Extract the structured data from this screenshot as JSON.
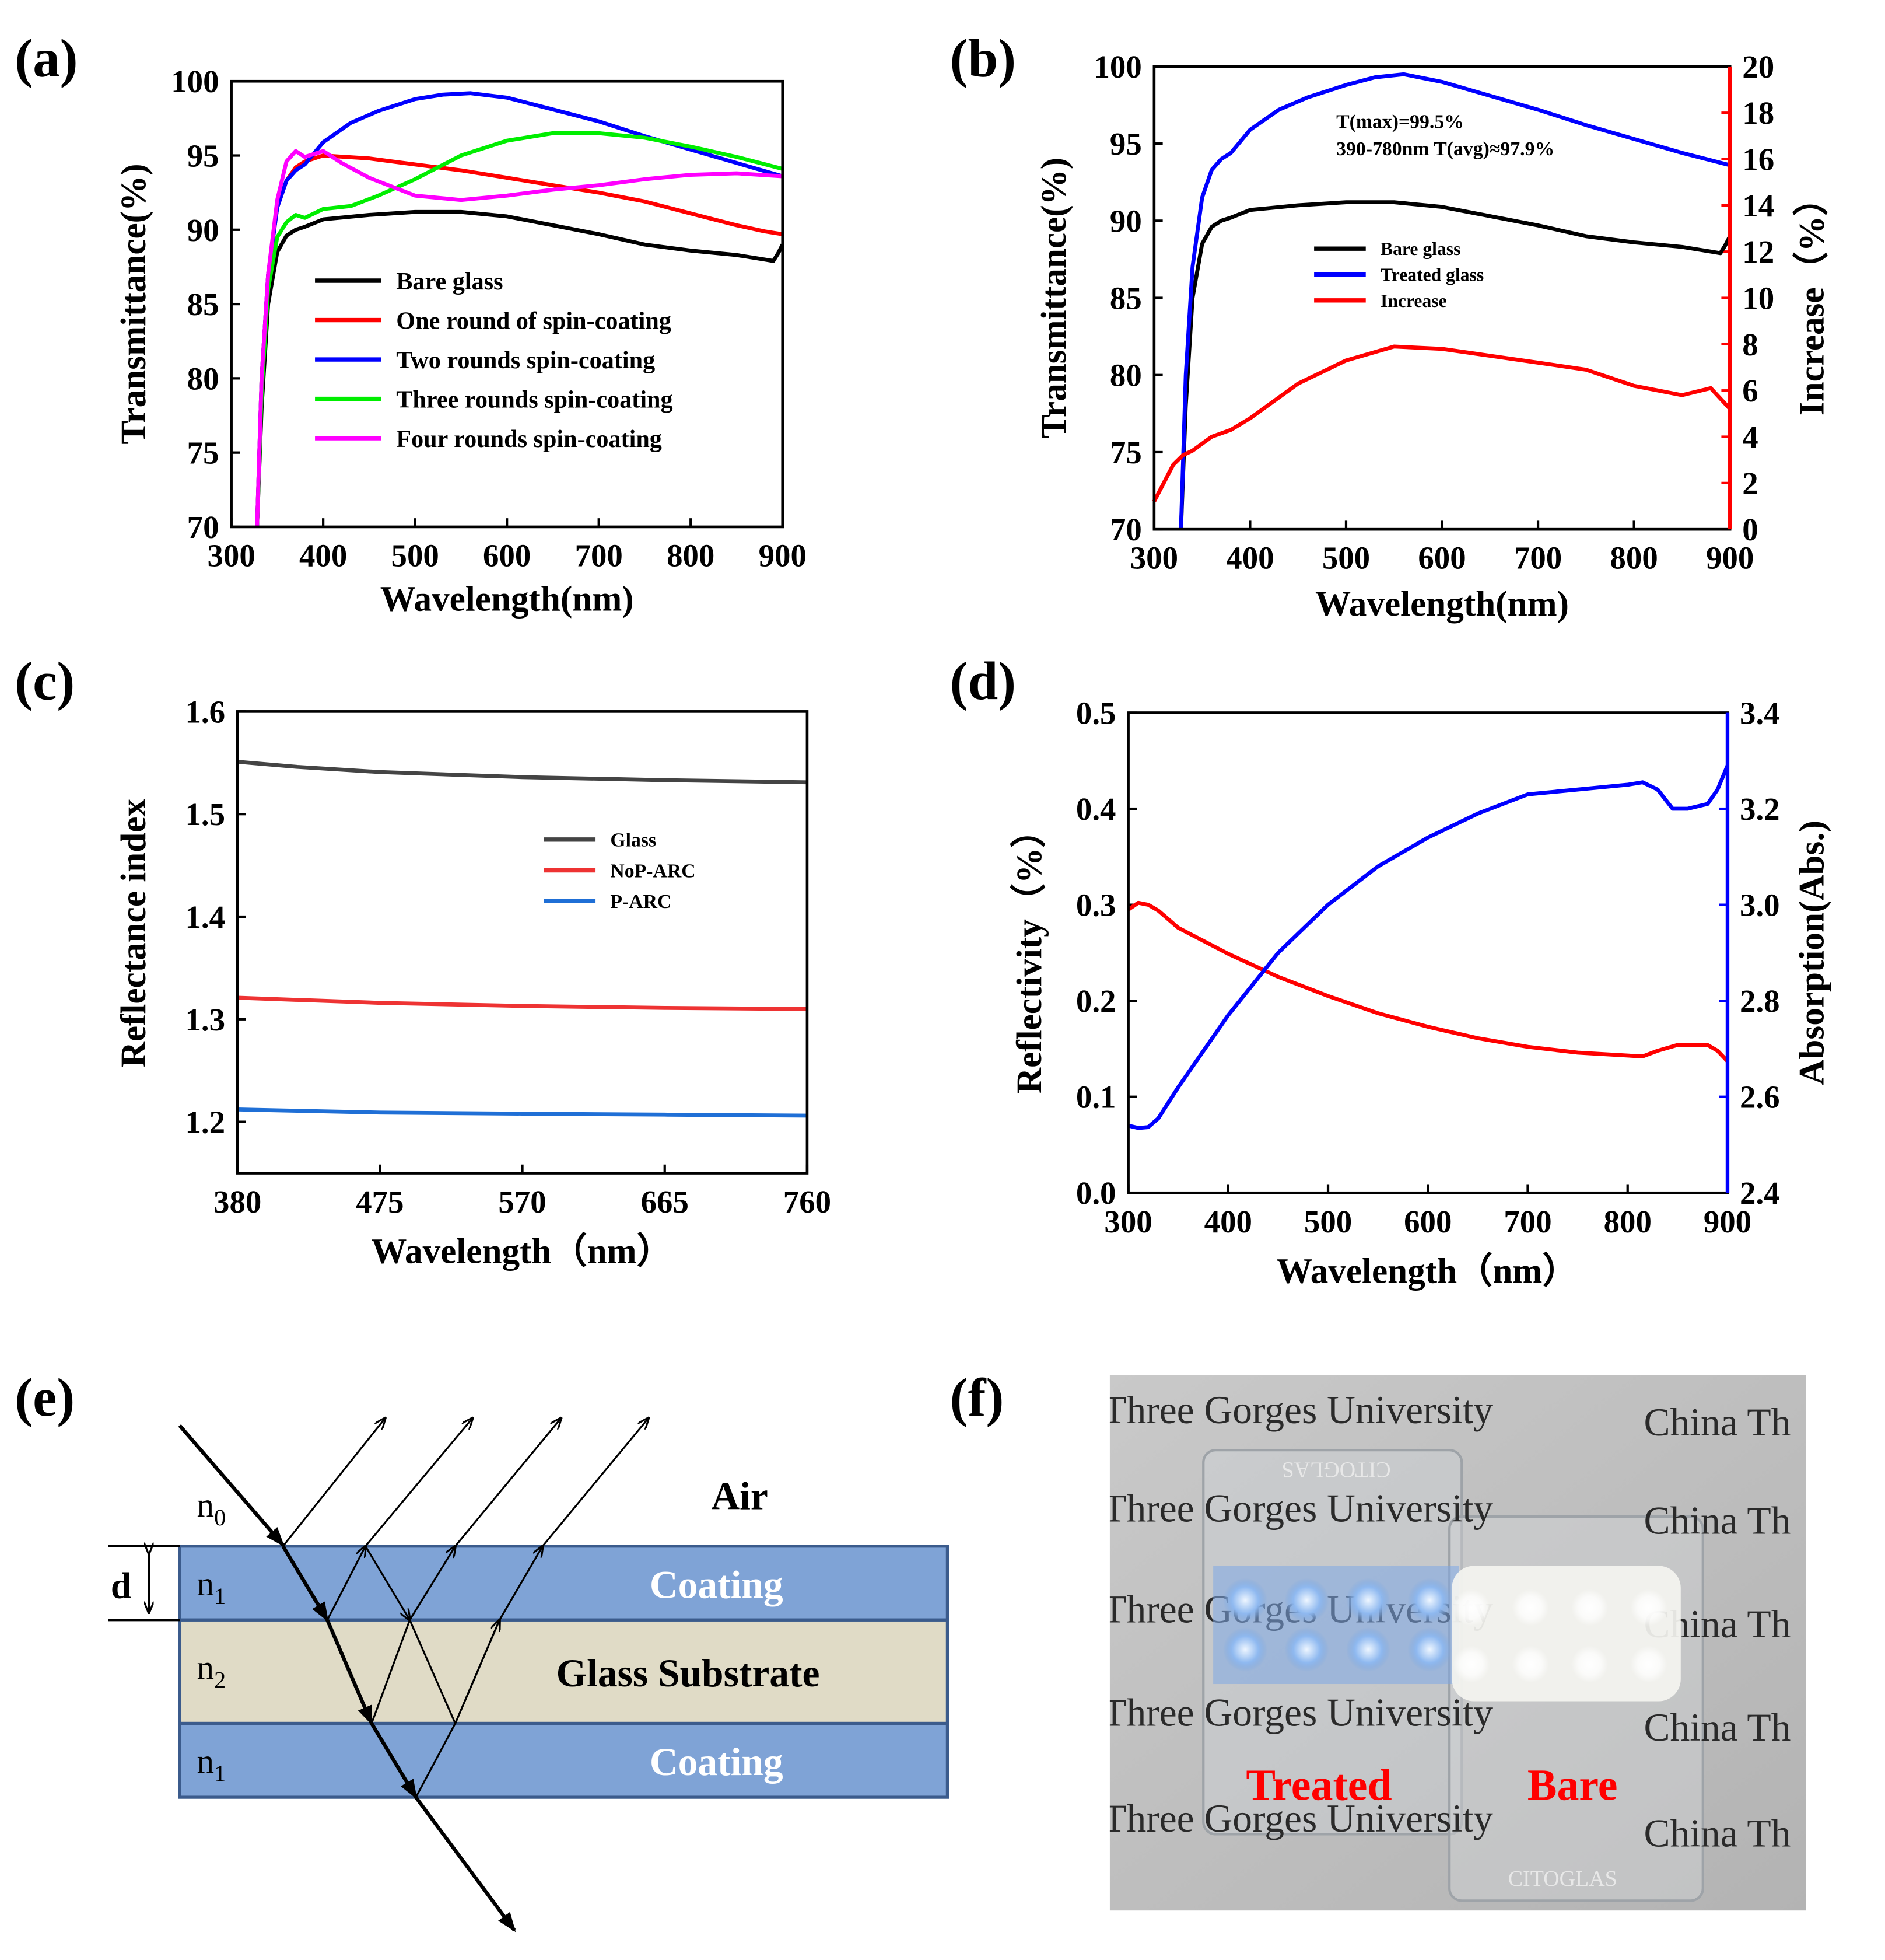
{
  "panel_labels": [
    "(a)",
    "(b)",
    "(c)",
    "(d)",
    "(e)",
    "(f)"
  ],
  "chart_data": [
    {
      "id": "a",
      "type": "line",
      "xlabel": "Wavelength(nm)",
      "ylabel": "Transmittance(%)",
      "xlim": [
        300,
        900
      ],
      "ylim": [
        70,
        100
      ],
      "xticks": [
        300,
        400,
        500,
        600,
        700,
        800,
        900
      ],
      "yticks": [
        70,
        75,
        80,
        85,
        90,
        95,
        100
      ],
      "legend_position": "center",
      "series": [
        {
          "name": "Bare glass",
          "color": "#000000",
          "x": [
            328,
            333,
            340,
            350,
            360,
            370,
            380,
            400,
            450,
            500,
            550,
            600,
            650,
            700,
            750,
            800,
            850,
            880,
            890,
            895,
            900
          ],
          "y": [
            70,
            78,
            85,
            88.5,
            89.6,
            90.0,
            90.2,
            90.7,
            91.0,
            91.2,
            91.2,
            90.9,
            90.3,
            89.7,
            89.0,
            88.6,
            88.3,
            88.0,
            87.9,
            88.4,
            89.0
          ]
        },
        {
          "name": "One round of spin-coating",
          "color": "#ff0000",
          "x": [
            328,
            333,
            340,
            350,
            360,
            370,
            380,
            400,
            450,
            500,
            550,
            600,
            650,
            700,
            750,
            800,
            850,
            880,
            900
          ],
          "y": [
            70,
            80,
            87,
            91.5,
            93.3,
            94.2,
            94.6,
            95.0,
            94.8,
            94.4,
            94.0,
            93.5,
            93.0,
            92.5,
            91.9,
            91.1,
            90.3,
            89.9,
            89.7
          ]
        },
        {
          "name": "Two rounds spin-coating",
          "color": "#0000ff",
          "x": [
            328,
            333,
            340,
            350,
            360,
            370,
            380,
            400,
            430,
            460,
            500,
            530,
            560,
            600,
            650,
            700,
            750,
            800,
            850,
            900
          ],
          "y": [
            70,
            80,
            87,
            91.5,
            93.3,
            94.0,
            94.4,
            95.9,
            97.2,
            98.0,
            98.8,
            99.1,
            99.2,
            98.9,
            98.1,
            97.3,
            96.3,
            95.4,
            94.5,
            93.6
          ]
        },
        {
          "name": "Three rounds spin-coating",
          "color": "#00ee00",
          "x": [
            328,
            333,
            340,
            350,
            360,
            370,
            380,
            400,
            430,
            460,
            500,
            550,
            600,
            650,
            700,
            750,
            800,
            850,
            900
          ],
          "y": [
            70,
            79,
            86,
            89.5,
            90.5,
            91.0,
            90.8,
            91.4,
            91.6,
            92.3,
            93.4,
            95.0,
            96.0,
            96.5,
            96.5,
            96.2,
            95.6,
            94.9,
            94.1
          ]
        },
        {
          "name": "Four rounds spin-coating",
          "color": "#ff00ff",
          "x": [
            328,
            333,
            340,
            350,
            360,
            370,
            380,
            400,
            420,
            450,
            500,
            550,
            600,
            650,
            700,
            750,
            800,
            850,
            900
          ],
          "y": [
            70,
            80,
            87,
            92,
            94.6,
            95.3,
            94.9,
            95.3,
            94.5,
            93.5,
            92.3,
            92.0,
            92.3,
            92.7,
            93.0,
            93.4,
            93.7,
            93.8,
            93.6
          ]
        }
      ]
    },
    {
      "id": "b",
      "type": "line",
      "xlabel": "Wavelength(nm)",
      "ylabel": "Transmittance(%)",
      "y2label": "Increase（%）",
      "xlim": [
        300,
        900
      ],
      "ylim": [
        70,
        100
      ],
      "y2lim": [
        0,
        20
      ],
      "xticks": [
        300,
        400,
        500,
        600,
        700,
        800,
        900
      ],
      "yticks": [
        70,
        75,
        80,
        85,
        90,
        95,
        100
      ],
      "y2ticks": [
        0,
        2,
        4,
        6,
        8,
        10,
        12,
        14,
        16,
        18,
        20
      ],
      "annotations": [
        "T(max)=99.5%",
        "390-780nm T(avg)≈97.9%"
      ],
      "legend_position": "center",
      "series": [
        {
          "name": "Bare glass",
          "color": "#000000",
          "axis": "left",
          "x": [
            328,
            333,
            340,
            350,
            360,
            370,
            380,
            400,
            450,
            500,
            550,
            600,
            650,
            700,
            750,
            800,
            850,
            880,
            890,
            895,
            900
          ],
          "y": [
            70,
            78,
            85,
            88.5,
            89.6,
            90.0,
            90.2,
            90.7,
            91.0,
            91.2,
            91.2,
            90.9,
            90.3,
            89.7,
            89.0,
            88.6,
            88.3,
            88.0,
            87.9,
            88.4,
            89.0
          ]
        },
        {
          "name": "Treated glass",
          "color": "#0000ff",
          "axis": "left",
          "x": [
            328,
            333,
            340,
            350,
            360,
            370,
            380,
            400,
            430,
            460,
            500,
            530,
            560,
            600,
            650,
            700,
            750,
            800,
            850,
            900
          ],
          "y": [
            70,
            80,
            87,
            91.5,
            93.3,
            94.0,
            94.4,
            95.9,
            97.2,
            98.0,
            98.8,
            99.3,
            99.5,
            99.0,
            98.1,
            97.2,
            96.2,
            95.3,
            94.4,
            93.6
          ]
        },
        {
          "name": "Increase",
          "color": "#ff0000",
          "axis": "right",
          "x": [
            300,
            310,
            320,
            330,
            340,
            360,
            380,
            400,
            450,
            500,
            550,
            600,
            650,
            700,
            750,
            800,
            850,
            880,
            900
          ],
          "y": [
            1.2,
            2.0,
            2.8,
            3.2,
            3.4,
            4.0,
            4.3,
            4.8,
            6.3,
            7.3,
            7.9,
            7.8,
            7.5,
            7.2,
            6.9,
            6.2,
            5.8,
            6.1,
            5.2
          ]
        }
      ]
    },
    {
      "id": "c",
      "type": "line",
      "xlabel": "Wavelength（nm）",
      "ylabel": "Reflectance index",
      "xlim": [
        380,
        760
      ],
      "ylim": [
        1.15,
        1.6
      ],
      "xticks": [
        380,
        475,
        570,
        665,
        760
      ],
      "yticks": [
        1.2,
        1.3,
        1.4,
        1.5,
        1.6
      ],
      "legend_position": "center-right",
      "series": [
        {
          "name": "Glass",
          "color": "#444444",
          "x": [
            380,
            420,
            475,
            570,
            665,
            760
          ],
          "y": [
            1.551,
            1.546,
            1.541,
            1.536,
            1.533,
            1.531
          ]
        },
        {
          "name": "NoP-ARC",
          "color": "#ee3333",
          "x": [
            380,
            475,
            570,
            665,
            760
          ],
          "y": [
            1.321,
            1.316,
            1.313,
            1.311,
            1.31
          ]
        },
        {
          "name": "P-ARC",
          "color": "#1f6fd6",
          "x": [
            380,
            475,
            570,
            665,
            760
          ],
          "y": [
            1.212,
            1.209,
            1.208,
            1.207,
            1.206
          ]
        }
      ]
    },
    {
      "id": "d",
      "type": "line",
      "xlabel": "Wavelength（nm）",
      "ylabel": "Reflectivity（%）",
      "y2label": "Absorption(Abs.)",
      "xlim": [
        300,
        900
      ],
      "ylim": [
        0.0,
        0.5
      ],
      "y2lim": [
        2.4,
        3.4
      ],
      "xticks": [
        300,
        400,
        500,
        600,
        700,
        800,
        900
      ],
      "yticks": [
        0.0,
        0.1,
        0.2,
        0.3,
        0.4,
        0.5
      ],
      "y2ticks": [
        2.4,
        2.6,
        2.8,
        3.0,
        3.2,
        3.4
      ],
      "series": [
        {
          "name": "Reflectivity",
          "color": "#ff0000",
          "axis": "left",
          "x": [
            300,
            310,
            320,
            330,
            350,
            400,
            450,
            500,
            550,
            600,
            650,
            700,
            750,
            800,
            815,
            830,
            850,
            880,
            890,
            900
          ],
          "y": [
            0.295,
            0.302,
            0.3,
            0.294,
            0.276,
            0.249,
            0.225,
            0.205,
            0.187,
            0.173,
            0.161,
            0.152,
            0.146,
            0.143,
            0.142,
            0.148,
            0.154,
            0.154,
            0.148,
            0.137
          ]
        },
        {
          "name": "Absorption",
          "color": "#0000ff",
          "axis": "right",
          "x": [
            300,
            310,
            320,
            330,
            350,
            400,
            450,
            500,
            550,
            600,
            650,
            700,
            750,
            800,
            815,
            830,
            845,
            860,
            880,
            890,
            900
          ],
          "y": [
            2.54,
            2.535,
            2.537,
            2.555,
            2.62,
            2.77,
            2.9,
            3.0,
            3.08,
            3.14,
            3.19,
            3.23,
            3.24,
            3.25,
            3.255,
            3.24,
            3.2,
            3.2,
            3.21,
            3.24,
            3.29
          ]
        }
      ]
    }
  ],
  "diagram_e": {
    "labels": {
      "n0": "n",
      "n0_sub": "0",
      "n1": "n",
      "n1_sub": "1",
      "n2": "n",
      "n2_sub": "2",
      "n1b": "n",
      "n1b_sub": "1",
      "d": "d",
      "air": "Air",
      "coating_top": "Coating",
      "substrate": "Glass Substrate",
      "coating_bottom": "Coating"
    },
    "colors": {
      "coating": "#7fa3d6",
      "substrate": "#e0dbc6",
      "border": "#3b5b8c"
    }
  },
  "photo_f": {
    "rows": [
      "Three Gorges University",
      "Three Gorges University",
      "Three Gorges University",
      "Three Gorges University",
      "Three Gorges University"
    ],
    "right_text": "China Th",
    "watermark": "CITOGLAS",
    "label_treated": "Treated",
    "label_bare": "Bare",
    "label_color": "#ff0000"
  }
}
